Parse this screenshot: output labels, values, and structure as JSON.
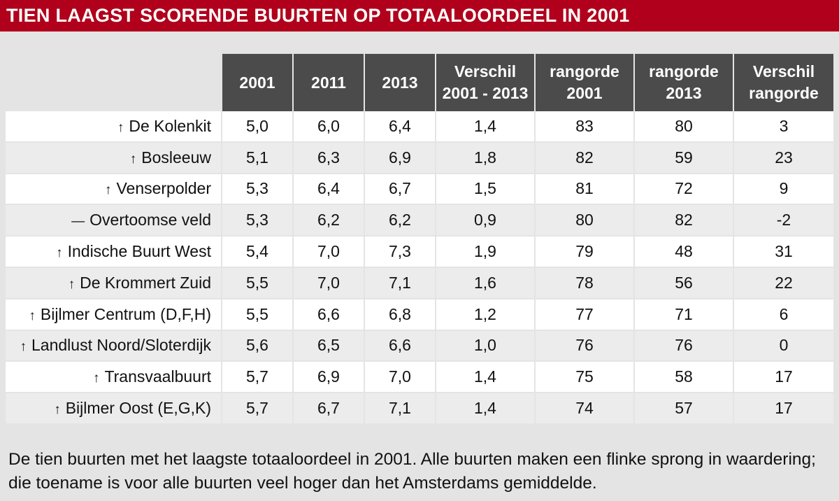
{
  "title": "TIEN LAAGST SCORENDE BUURTEN OP TOTAALOORDEEL IN 2001",
  "columns": [
    {
      "line1": "2001",
      "line2": ""
    },
    {
      "line1": "2011",
      "line2": ""
    },
    {
      "line1": "2013",
      "line2": ""
    },
    {
      "line1": "Verschil",
      "line2": "2001 - 2013"
    },
    {
      "line1": "rangorde",
      "line2": "2001"
    },
    {
      "line1": "rangorde",
      "line2": "2013"
    },
    {
      "line1": "Verschil",
      "line2": "rangorde"
    }
  ],
  "rows": [
    {
      "trend": "↑",
      "name": "De Kolenkit",
      "v2001": "5,0",
      "v2011": "6,0",
      "v2013": "6,4",
      "diff": "1,4",
      "rank2001": "83",
      "rank2013": "80",
      "rankdiff": "3"
    },
    {
      "trend": "↑",
      "name": "Bosleeuw",
      "v2001": "5,1",
      "v2011": "6,3",
      "v2013": "6,9",
      "diff": "1,8",
      "rank2001": "82",
      "rank2013": "59",
      "rankdiff": "23"
    },
    {
      "trend": "↑",
      "name": "Venserpolder",
      "v2001": "5,3",
      "v2011": "6,4",
      "v2013": "6,7",
      "diff": "1,5",
      "rank2001": "81",
      "rank2013": "72",
      "rankdiff": "9"
    },
    {
      "trend": "—",
      "name": "Overtoomse veld",
      "v2001": "5,3",
      "v2011": "6,2",
      "v2013": "6,2",
      "diff": "0,9",
      "rank2001": "80",
      "rank2013": "82",
      "rankdiff": "-2"
    },
    {
      "trend": "↑",
      "name": "Indische Buurt West",
      "v2001": "5,4",
      "v2011": "7,0",
      "v2013": "7,3",
      "diff": "1,9",
      "rank2001": "79",
      "rank2013": "48",
      "rankdiff": "31"
    },
    {
      "trend": "↑",
      "name": "De Krommert Zuid",
      "v2001": "5,5",
      "v2011": "7,0",
      "v2013": "7,1",
      "diff": "1,6",
      "rank2001": "78",
      "rank2013": "56",
      "rankdiff": "22"
    },
    {
      "trend": "↑",
      "name": "Bijlmer Centrum (D,F,H)",
      "v2001": "5,5",
      "v2011": "6,6",
      "v2013": "6,8",
      "diff": "1,2",
      "rank2001": "77",
      "rank2013": "71",
      "rankdiff": "6"
    },
    {
      "trend": "↑",
      "name": "Landlust Noord/Sloterdijk",
      "v2001": "5,6",
      "v2011": "6,5",
      "v2013": "6,6",
      "diff": "1,0",
      "rank2001": "76",
      "rank2013": "76",
      "rankdiff": "0"
    },
    {
      "trend": "↑",
      "name": "Transvaalbuurt",
      "v2001": "5,7",
      "v2011": "6,9",
      "v2013": "7,0",
      "diff": "1,4",
      "rank2001": "75",
      "rank2013": "58",
      "rankdiff": "17"
    },
    {
      "trend": "↑",
      "name": "Bijlmer Oost (E,G,K)",
      "v2001": "5,7",
      "v2011": "6,7",
      "v2013": "7,1",
      "diff": "1,4",
      "rank2001": "74",
      "rank2013": "57",
      "rankdiff": "17"
    }
  ],
  "caption": "De tien buurten met het laagste totaaloordeel in 2001. Alle buurten maken een flinke sprong in waardering; die toename is voor alle buurten veel hoger dan het Amsterdams gemiddelde.",
  "colors": {
    "title_bar": "#b0001b",
    "header_bg": "#4b4b4b",
    "page_bg": "#e4e4e4"
  }
}
